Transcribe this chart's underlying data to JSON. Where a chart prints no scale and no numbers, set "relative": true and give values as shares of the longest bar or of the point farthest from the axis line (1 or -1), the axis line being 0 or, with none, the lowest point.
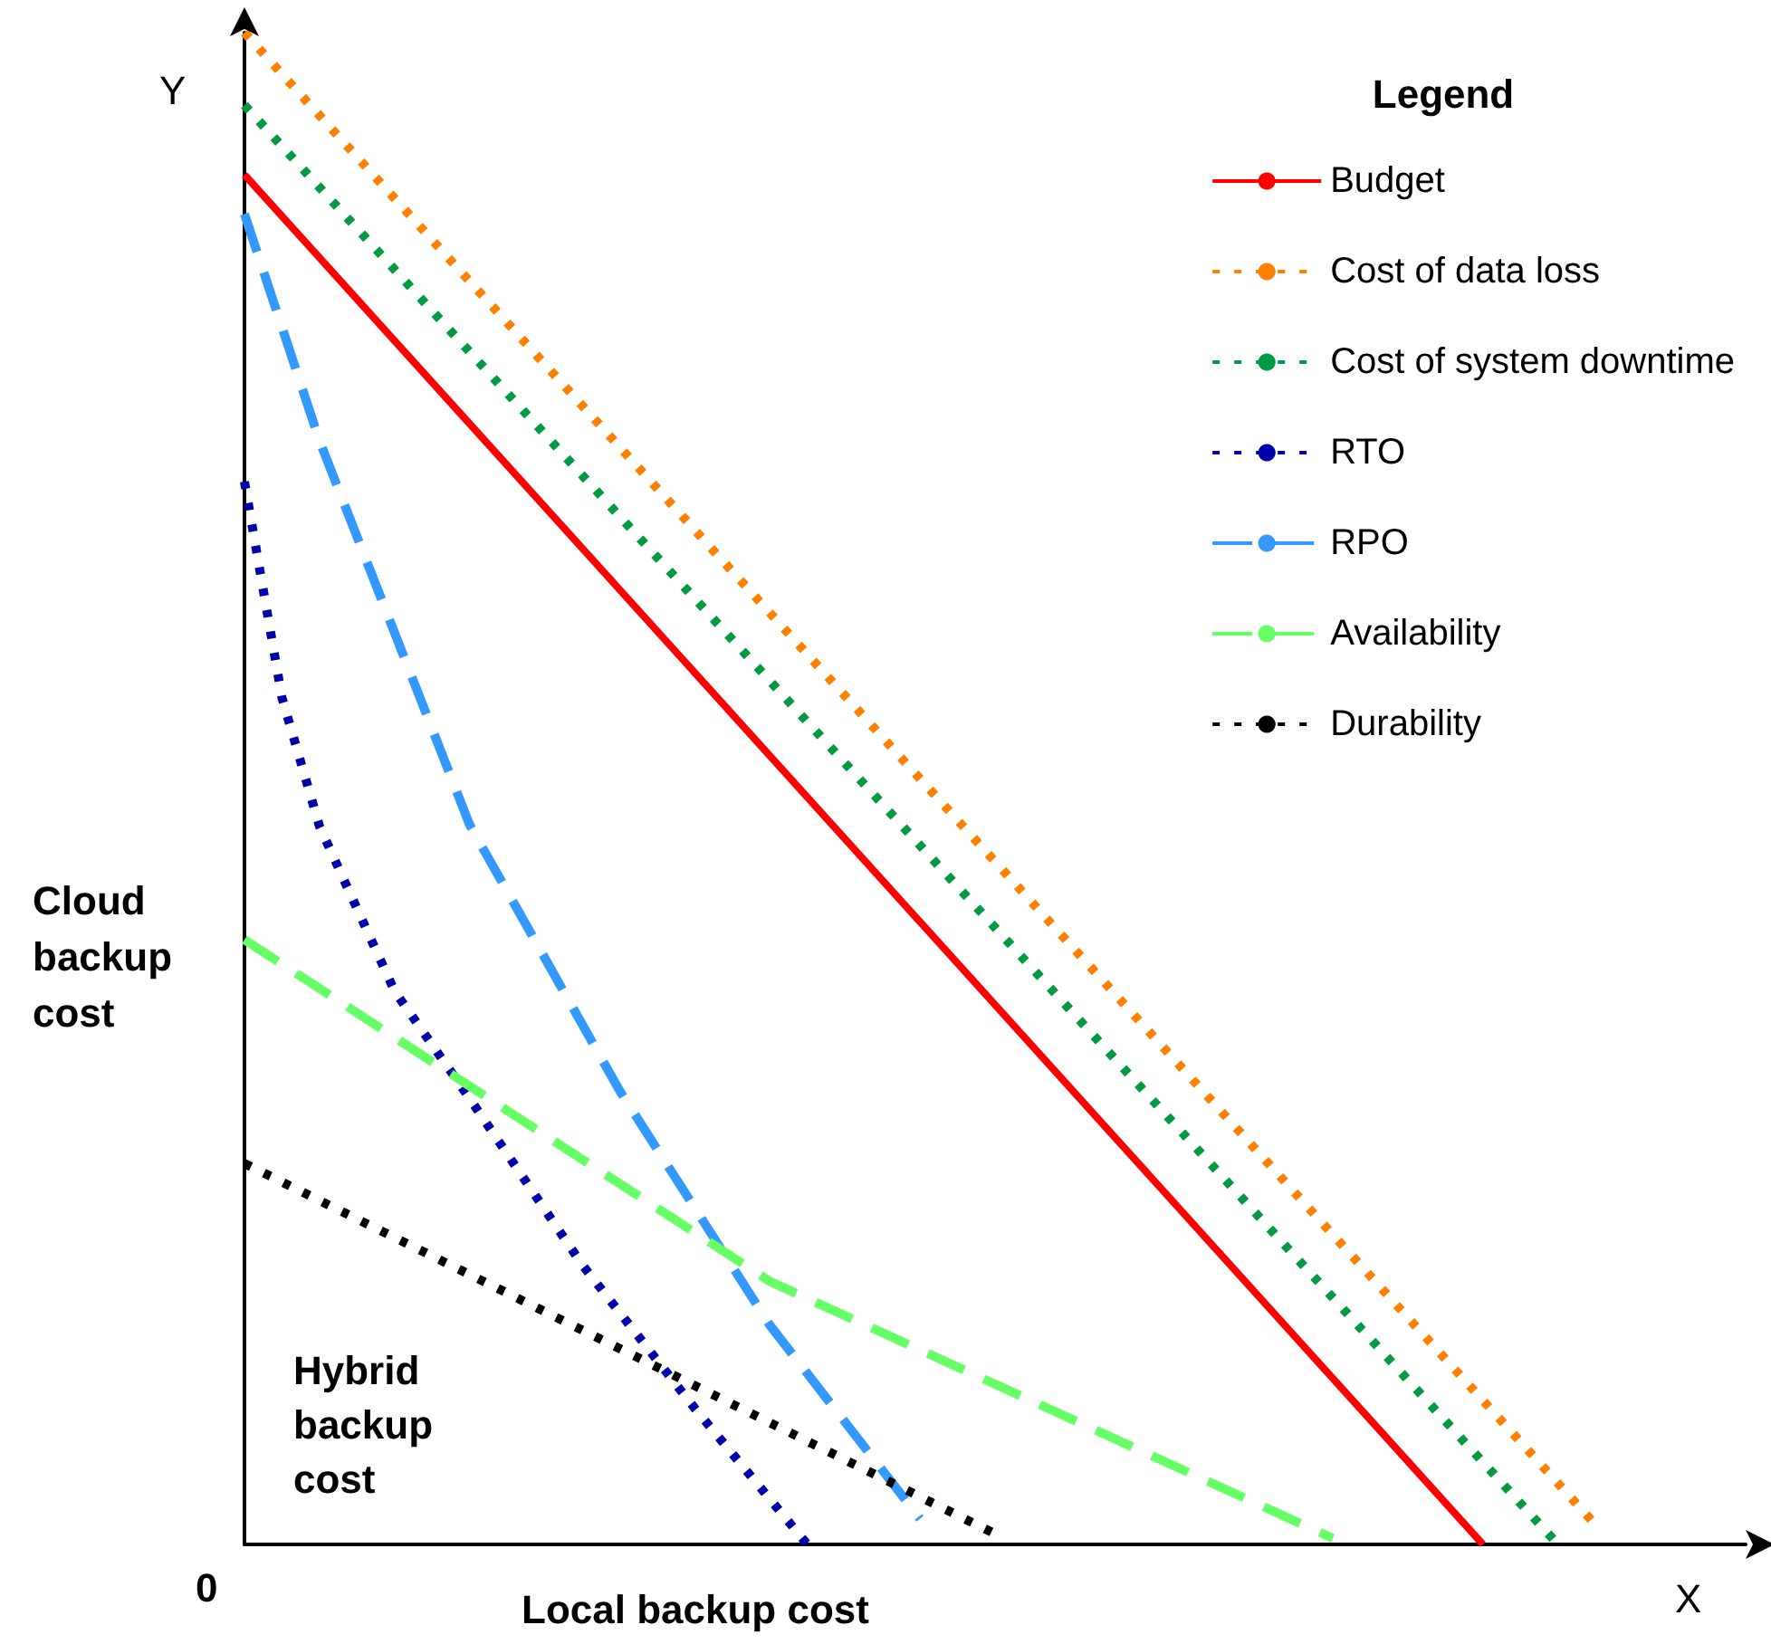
{
  "chart_data": {
    "type": "line",
    "relative": true,
    "xlabel": "Local backup cost",
    "ylabel": "Cloud backup cost",
    "legend_title": "Legend",
    "legend": "top right",
    "marker": "none",
    "grid": false,
    "annotations": [
      "Y",
      "X",
      "0",
      "Hybrid backup cost"
    ],
    "categories": [
      null,
      null,
      null,
      null,
      null,
      null,
      null,
      null,
      null,
      null,
      null,
      null,
      null,
      null,
      null,
      null,
      null,
      null,
      null,
      null,
      null,
      null,
      null,
      null,
      null,
      null,
      null,
      null,
      null,
      null,
      null,
      null,
      null,
      null,
      null,
      null,
      null,
      null,
      null,
      null,
      null
    ],
    "series": [
      {
        "name": "Budget",
        "color": "#ff0000",
        "line_style": "solid",
        "values": [
          0.906,
          null,
          null,
          null,
          null,
          null,
          null,
          null,
          null,
          null,
          null,
          null,
          null,
          null,
          null,
          null,
          null,
          null,
          null,
          null,
          null,
          null,
          null,
          null,
          null,
          null,
          null,
          null,
          null,
          null,
          null,
          null,
          null,
          0,
          null,
          null,
          null,
          null,
          null,
          null,
          null
        ]
      },
      {
        "name": "Cost of data loss",
        "color": "#ff8000",
        "line_style": "dotted",
        "values": [
          1.0,
          null,
          null,
          null,
          null,
          null,
          null,
          null,
          null,
          null,
          null,
          null,
          null,
          null,
          null,
          null,
          null,
          null,
          null,
          null,
          null,
          null,
          null,
          null,
          null,
          null,
          null,
          null,
          null,
          null,
          null,
          null,
          null,
          null,
          null,
          null,
          0.013,
          null,
          null,
          null,
          null
        ]
      },
      {
        "name": "Cost of system downtime",
        "color": "#009944",
        "line_style": "dotted",
        "values": [
          0.952,
          null,
          null,
          null,
          null,
          null,
          null,
          null,
          null,
          null,
          null,
          null,
          null,
          null,
          null,
          null,
          null,
          null,
          null,
          null,
          null,
          null,
          null,
          null,
          null,
          null,
          null,
          null,
          null,
          null,
          null,
          null,
          null,
          null,
          null,
          0,
          null,
          null,
          null,
          null,
          null
        ]
      },
      {
        "name": "RTO",
        "color": "#0000aa",
        "line_style": "dotted",
        "values": [
          0.703,
          0.56,
          0.475,
          null,
          0.366,
          null,
          0.295,
          null,
          null,
          0.185,
          null,
          null,
          0.09,
          null,
          null,
          0,
          null,
          null,
          null,
          null,
          null,
          null,
          null,
          null,
          null,
          null,
          null,
          null,
          null,
          null,
          null,
          null,
          null,
          null,
          null,
          null,
          null,
          null,
          null,
          null,
          null
        ]
      },
      {
        "name": "RPO",
        "color": "#3399ff",
        "line_style": "dashed",
        "values": [
          0.88,
          null,
          0.73,
          null,
          null,
          null,
          0.476,
          null,
          null,
          null,
          0.3,
          null,
          null,
          null,
          0.145,
          null,
          null,
          null,
          0.017,
          null,
          null,
          null,
          null,
          null,
          null,
          null,
          null,
          null,
          null,
          null,
          null,
          null,
          null,
          null,
          null,
          null,
          null,
          null,
          null,
          null,
          null
        ]
      },
      {
        "name": "Availability",
        "color": "#66ff66",
        "line_style": "dashed",
        "values": [
          0.4,
          null,
          null,
          null,
          null,
          null,
          null,
          null,
          null,
          null,
          null,
          null,
          null,
          null,
          0.174,
          null,
          null,
          null,
          null,
          null,
          null,
          null,
          null,
          null,
          null,
          null,
          null,
          null,
          null,
          0.004,
          null,
          null,
          null,
          null,
          null,
          null,
          null,
          null,
          null,
          null,
          null
        ]
      },
      {
        "name": "Durability",
        "color": "#000000",
        "line_style": "dotted",
        "values": [
          0.252,
          null,
          null,
          null,
          null,
          null,
          null,
          null,
          null,
          null,
          null,
          null,
          null,
          null,
          null,
          null,
          null,
          null,
          null,
          null,
          0.007,
          null,
          null,
          null,
          null,
          null,
          null,
          null,
          null,
          null,
          null,
          null,
          null,
          null,
          null,
          null,
          null,
          null,
          null,
          null,
          null
        ]
      }
    ]
  }
}
